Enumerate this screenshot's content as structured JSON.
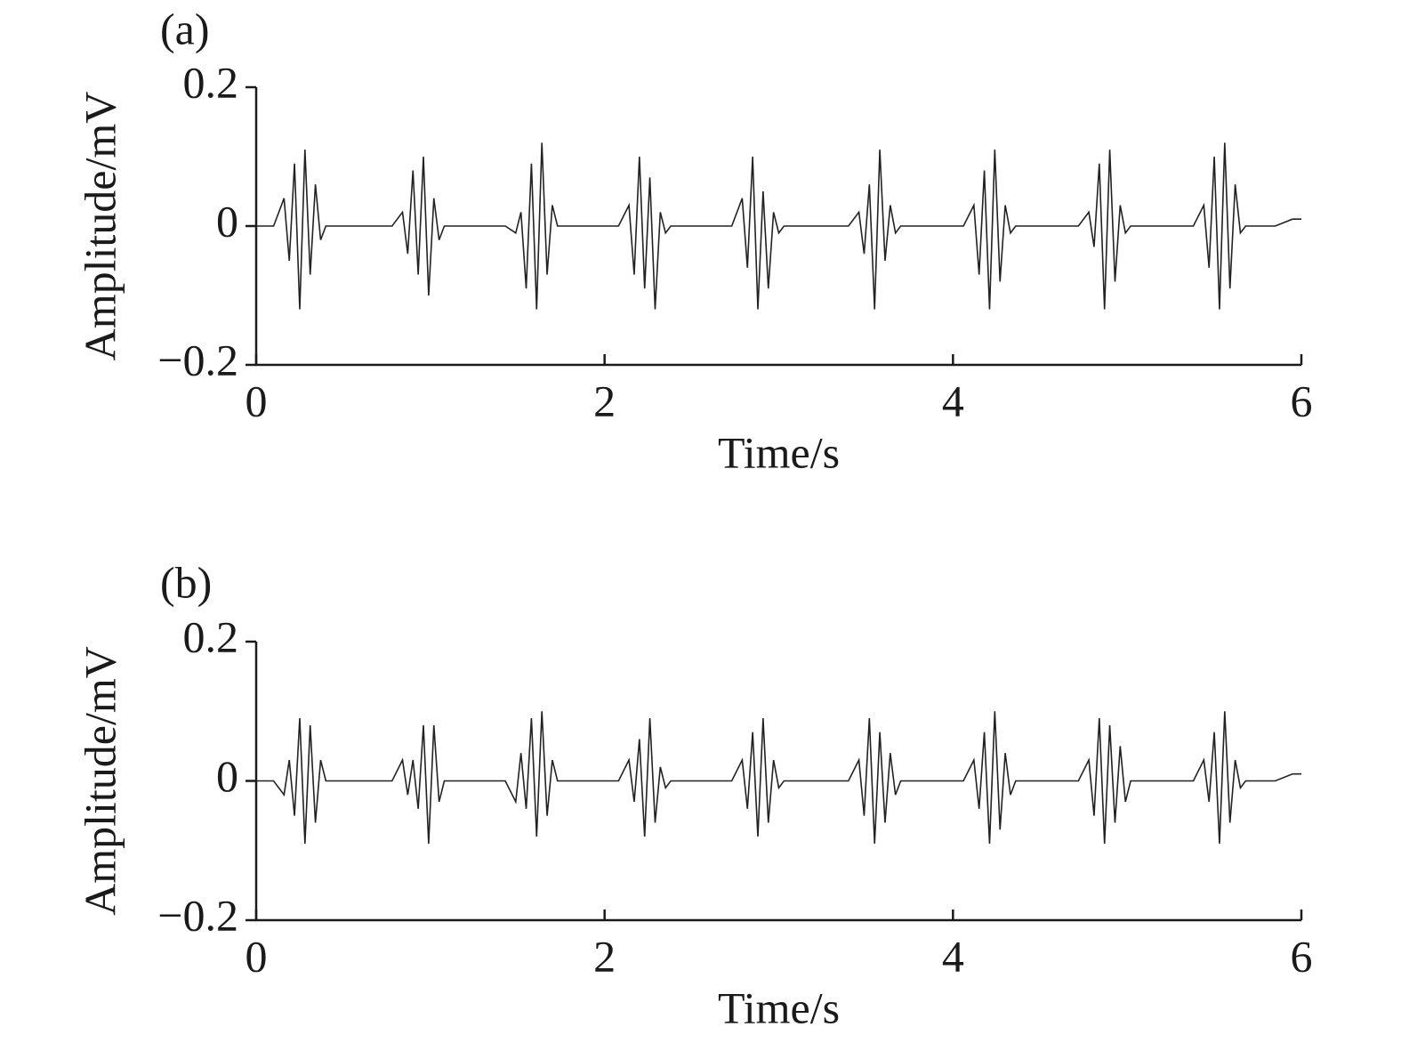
{
  "chart_data": [
    {
      "type": "line",
      "title": "(a)",
      "xlabel": "Time/s",
      "ylabel": "Amplitude/mV",
      "color": "#222222",
      "xlim": [
        0,
        6
      ],
      "ylim": [
        -0.2,
        0.2
      ],
      "xticks": [
        0,
        2,
        4,
        6
      ],
      "yticks": [
        {
          "value": -0.2,
          "label": "−0.2"
        },
        0,
        0.2
      ],
      "x": [
        0,
        0.1,
        0.16,
        0.19,
        0.22,
        0.25,
        0.28,
        0.31,
        0.34,
        0.37,
        0.4,
        0.78,
        0.84,
        0.87,
        0.9,
        0.93,
        0.96,
        0.99,
        1.02,
        1.05,
        1.08,
        1.43,
        1.49,
        1.52,
        1.55,
        1.58,
        1.61,
        1.64,
        1.67,
        1.7,
        1.73,
        2.08,
        2.14,
        2.17,
        2.2,
        2.23,
        2.26,
        2.29,
        2.32,
        2.35,
        2.38,
        2.73,
        2.79,
        2.82,
        2.85,
        2.88,
        2.91,
        2.94,
        2.97,
        3,
        3.03,
        3.4,
        3.46,
        3.49,
        3.52,
        3.55,
        3.58,
        3.61,
        3.64,
        3.67,
        3.7,
        4.06,
        4.12,
        4.15,
        4.18,
        4.21,
        4.24,
        4.27,
        4.3,
        4.33,
        4.36,
        4.72,
        4.78,
        4.81,
        4.84,
        4.87,
        4.9,
        4.93,
        4.96,
        4.99,
        5.02,
        5.38,
        5.44,
        5.47,
        5.5,
        5.53,
        5.56,
        5.59,
        5.62,
        5.65,
        5.68,
        5.85,
        5.95,
        6
      ],
      "values": [
        0,
        0,
        0.04,
        -0.05,
        0.09,
        -0.12,
        0.11,
        -0.07,
        0.06,
        -0.02,
        0,
        0,
        0.02,
        -0.04,
        0.08,
        -0.07,
        0.1,
        -0.1,
        0.04,
        -0.02,
        0,
        0,
        -0.01,
        0.02,
        -0.09,
        0.09,
        -0.12,
        0.12,
        -0.07,
        0.03,
        0,
        0,
        0.03,
        -0.07,
        0.1,
        -0.09,
        0.07,
        -0.12,
        0.02,
        -0.01,
        0,
        0,
        0.04,
        -0.06,
        0.1,
        -0.12,
        0.05,
        -0.09,
        0.02,
        -0.01,
        0,
        0,
        0.02,
        -0.04,
        0.06,
        -0.12,
        0.11,
        -0.05,
        0.03,
        -0.01,
        0,
        0,
        0.03,
        -0.07,
        0.08,
        -0.12,
        0.11,
        -0.08,
        0.03,
        -0.01,
        0,
        0,
        0.02,
        -0.03,
        0.09,
        -0.12,
        0.11,
        -0.08,
        0.03,
        -0.01,
        0,
        0,
        0.03,
        -0.06,
        0.1,
        -0.12,
        0.12,
        -0.09,
        0.06,
        -0.01,
        0,
        0,
        0.01,
        0.01
      ]
    },
    {
      "type": "line",
      "title": "(b)",
      "xlabel": "Time/s",
      "ylabel": "Amplitude/mV",
      "color": "#222222",
      "xlim": [
        0,
        6
      ],
      "ylim": [
        -0.2,
        0.2
      ],
      "xticks": [
        0,
        2,
        4,
        6
      ],
      "yticks": [
        {
          "value": -0.2,
          "label": "−0.2"
        },
        0,
        0.2
      ],
      "x": [
        0,
        0.1,
        0.16,
        0.19,
        0.22,
        0.25,
        0.28,
        0.31,
        0.34,
        0.37,
        0.4,
        0.78,
        0.84,
        0.87,
        0.9,
        0.93,
        0.96,
        0.99,
        1.02,
        1.05,
        1.08,
        1.43,
        1.49,
        1.52,
        1.55,
        1.58,
        1.61,
        1.64,
        1.67,
        1.7,
        1.73,
        2.08,
        2.14,
        2.17,
        2.2,
        2.23,
        2.26,
        2.29,
        2.32,
        2.35,
        2.38,
        2.73,
        2.79,
        2.82,
        2.85,
        2.88,
        2.91,
        2.94,
        2.97,
        3,
        3.03,
        3.4,
        3.46,
        3.49,
        3.52,
        3.55,
        3.58,
        3.61,
        3.64,
        3.67,
        3.7,
        4.06,
        4.12,
        4.15,
        4.18,
        4.21,
        4.24,
        4.27,
        4.3,
        4.33,
        4.36,
        4.72,
        4.78,
        4.81,
        4.84,
        4.87,
        4.9,
        4.93,
        4.96,
        4.99,
        5.02,
        5.38,
        5.44,
        5.47,
        5.5,
        5.53,
        5.56,
        5.59,
        5.62,
        5.65,
        5.68,
        5.85,
        5.95,
        6
      ],
      "values": [
        0,
        0,
        -0.02,
        0.03,
        -0.05,
        0.09,
        -0.09,
        0.08,
        -0.06,
        0.03,
        0,
        0,
        0.03,
        -0.02,
        0.03,
        -0.04,
        0.08,
        -0.09,
        0.08,
        -0.03,
        0,
        0,
        -0.03,
        0.04,
        -0.04,
        0.09,
        -0.08,
        0.1,
        -0.05,
        0.03,
        0,
        0,
        0.03,
        -0.03,
        0.06,
        -0.08,
        0.09,
        -0.06,
        0.02,
        -0.01,
        0,
        0,
        0.03,
        -0.04,
        0.07,
        -0.08,
        0.09,
        -0.06,
        0.03,
        -0.01,
        0,
        0,
        0.03,
        -0.05,
        0.09,
        -0.09,
        0.07,
        -0.06,
        0.04,
        -0.02,
        0,
        0,
        0.03,
        -0.04,
        0.07,
        -0.09,
        0.1,
        -0.07,
        0.04,
        -0.02,
        0,
        0,
        0.03,
        -0.05,
        0.09,
        -0.09,
        0.08,
        -0.06,
        0.05,
        -0.03,
        0,
        0,
        0.03,
        -0.03,
        0.07,
        -0.09,
        0.1,
        -0.06,
        0.03,
        -0.01,
        0,
        0,
        0.01,
        0.01
      ]
    }
  ]
}
